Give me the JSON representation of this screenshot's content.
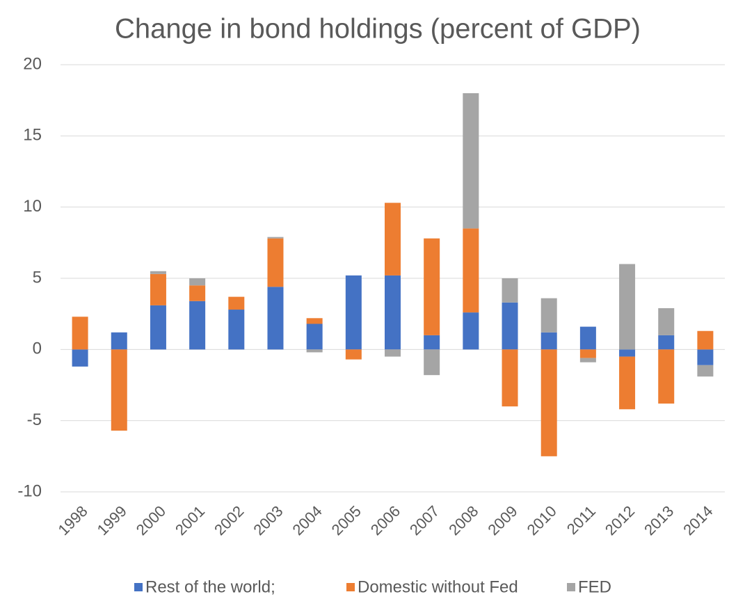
{
  "chart_data": {
    "type": "bar",
    "stacked": true,
    "title": "Change in bond holdings (percent of GDP)",
    "categories": [
      "1998",
      "1999",
      "2000",
      "2001",
      "2002",
      "2003",
      "2004",
      "2005",
      "2006",
      "2007",
      "2008",
      "2009",
      "2010",
      "2011",
      "2012",
      "2013",
      "2014"
    ],
    "series": [
      {
        "name": "Rest of the world;",
        "color": "#4472c4",
        "values": [
          -1.2,
          1.2,
          3.1,
          3.4,
          2.8,
          4.4,
          1.8,
          5.2,
          5.2,
          1.0,
          2.6,
          3.3,
          1.2,
          1.6,
          -0.5,
          1.0,
          -1.1
        ]
      },
      {
        "name": "Domestic without Fed",
        "color": "#ed7d31",
        "values": [
          2.3,
          -5.7,
          2.2,
          1.1,
          0.9,
          3.4,
          0.4,
          -0.7,
          5.1,
          6.8,
          5.9,
          -4.0,
          -7.5,
          -0.6,
          -3.7,
          -3.8,
          1.3
        ]
      },
      {
        "name": "FED",
        "color": "#a5a5a5",
        "values": [
          0,
          0,
          0.2,
          0.5,
          0,
          0.1,
          -0.2,
          0,
          -0.5,
          -1.8,
          9.5,
          1.7,
          2.4,
          -0.3,
          6.0,
          1.9,
          -0.8
        ]
      }
    ],
    "ylim": [
      -10,
      20
    ],
    "yticks": [
      -10,
      -5,
      0,
      5,
      10,
      15,
      20
    ],
    "grid": true,
    "legend": "bottom"
  }
}
